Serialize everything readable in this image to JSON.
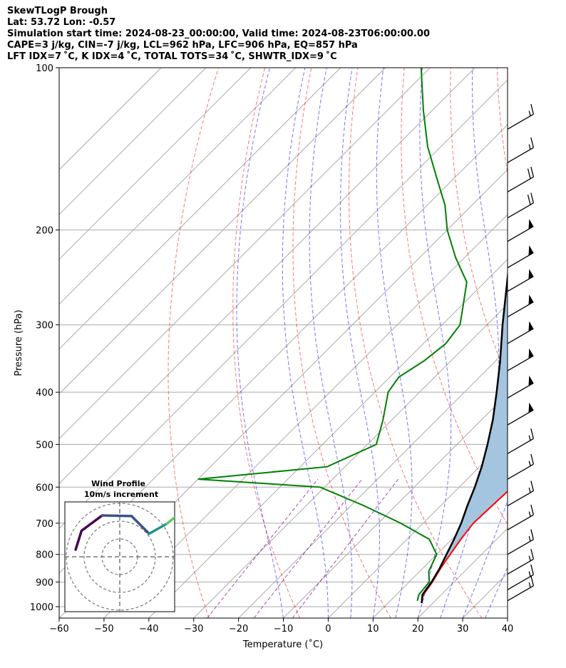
{
  "header": {
    "line1": "SkewTLogP Brough",
    "line2": "Lat: 53.72   Lon: -0.57",
    "line3": "Simulation start time: 2024-08-23_00:00:00, Valid time: 2024-08-23T06:00:00.00",
    "line4": "CAPE=3 j/kg, CIN=-7 j/kg, LCL=962 hPa, LFC=906 hPa, EQ=857 hPa",
    "line5": "LFT IDX=7 ˚C, K IDX=4 ˚C, TOTAL TOTS=34 ˚C, SHWTR_IDX=9 ˚C"
  },
  "chart_data": {
    "type": "line",
    "xlabel": "Temperature (˚C)",
    "ylabel": "Pressure (hPa)",
    "xlim": [
      -60,
      40
    ],
    "ylim": [
      1050,
      100
    ],
    "y_scale": "log",
    "skew": true,
    "x_ticks": [
      "−60",
      "−50",
      "−40",
      "−30",
      "−20",
      "−10",
      "0",
      "10",
      "20",
      "30",
      "40"
    ],
    "y_ticks": [
      "100",
      "200",
      "300",
      "400",
      "500",
      "600",
      "700",
      "800",
      "900",
      "1000"
    ],
    "grid": true,
    "series": [
      {
        "role": "temperature",
        "color": "#ff0000",
        "points": [
          [
            17,
            975
          ],
          [
            16,
            950
          ],
          [
            15.2,
            900
          ],
          [
            14,
            850
          ],
          [
            13,
            800
          ],
          [
            12,
            750
          ],
          [
            11.2,
            700
          ],
          [
            11.5,
            650
          ],
          [
            11.8,
            600
          ],
          [
            11.2,
            550
          ],
          [
            9,
            500
          ],
          [
            5,
            450
          ],
          [
            1,
            400
          ],
          [
            -4,
            350
          ],
          [
            -9,
            300
          ],
          [
            -12,
            270
          ],
          [
            -15,
            250
          ],
          [
            -20,
            225
          ],
          [
            -25,
            200
          ],
          [
            -30,
            180
          ],
          [
            -37,
            160
          ],
          [
            -45,
            140
          ],
          [
            -55,
            120
          ],
          [
            -63,
            100
          ]
        ]
      },
      {
        "role": "dewpoint",
        "color": "#008000",
        "points": [
          [
            16,
            975
          ],
          [
            15,
            950
          ],
          [
            14.5,
            900
          ],
          [
            12,
            860
          ],
          [
            10,
            800
          ],
          [
            5,
            750
          ],
          [
            -5,
            700
          ],
          [
            -17,
            650
          ],
          [
            -31,
            600
          ],
          [
            -60,
            580
          ],
          [
            -34,
            550
          ],
          [
            -28,
            500
          ],
          [
            -32,
            450
          ],
          [
            -37,
            400
          ],
          [
            -38,
            375
          ],
          [
            -36,
            350
          ],
          [
            -35,
            325
          ],
          [
            -36,
            300
          ],
          [
            -39,
            280
          ],
          [
            -44,
            250
          ],
          [
            -52,
            225
          ],
          [
            -60,
            200
          ],
          [
            -66,
            180
          ],
          [
            -74,
            160
          ],
          [
            -83,
            140
          ],
          [
            -92,
            120
          ],
          [
            -102,
            100
          ]
        ]
      },
      {
        "role": "parcel",
        "color": "#000000",
        "points": [
          [
            17.5,
            985
          ],
          [
            15.8,
            950
          ],
          [
            15,
            900
          ],
          [
            13.8,
            850
          ],
          [
            12.2,
            800
          ],
          [
            10.5,
            750
          ],
          [
            8.5,
            700
          ],
          [
            6,
            650
          ],
          [
            3.5,
            600
          ],
          [
            0.5,
            550
          ],
          [
            -3.2,
            500
          ],
          [
            -7.5,
            450
          ],
          [
            -12.8,
            400
          ],
          [
            -19,
            350
          ],
          [
            -26.5,
            300
          ],
          [
            -35,
            250
          ],
          [
            -45.5,
            200
          ],
          [
            -53,
            170
          ],
          [
            -62,
            140
          ],
          [
            -70,
            120
          ],
          [
            -80,
            100
          ]
        ]
      }
    ],
    "cape_shading_color": "#a3c5df",
    "dry_adiabat_color": "#ff0000",
    "moist_adiabat_color": "#0000ff",
    "mixing_ratio_color": "#800080",
    "wind_barbs": [
      {
        "p": 130,
        "dir": 240,
        "speed": 15
      },
      {
        "p": 150,
        "dir": 240,
        "speed": 15
      },
      {
        "p": 170,
        "dir": 240,
        "speed": 20
      },
      {
        "p": 190,
        "dir": 240,
        "speed": 20
      },
      {
        "p": 210,
        "dir": 240,
        "speed": 50
      },
      {
        "p": 235,
        "dir": 240,
        "speed": 50
      },
      {
        "p": 260,
        "dir": 240,
        "speed": 50
      },
      {
        "p": 290,
        "dir": 240,
        "speed": 50
      },
      {
        "p": 325,
        "dir": 240,
        "speed": 50
      },
      {
        "p": 365,
        "dir": 240,
        "speed": 50
      },
      {
        "p": 410,
        "dir": 240,
        "speed": 50
      },
      {
        "p": 460,
        "dir": 240,
        "speed": 50
      },
      {
        "p": 520,
        "dir": 240,
        "speed": 15
      },
      {
        "p": 580,
        "dir": 240,
        "speed": 15
      },
      {
        "p": 650,
        "dir": 240,
        "speed": 15
      },
      {
        "p": 720,
        "dir": 240,
        "speed": 15
      },
      {
        "p": 800,
        "dir": 240,
        "speed": 15
      },
      {
        "p": 870,
        "dir": 240,
        "speed": 15
      },
      {
        "p": 930,
        "dir": 240,
        "speed": 15
      },
      {
        "p": 975,
        "dir": 240,
        "speed": 15
      }
    ],
    "hodograph": {
      "title_line1": "Wind Profile",
      "title_line2": "10m/s increment",
      "rings": 3,
      "trace": [
        [
          -7.5,
          -1.2
        ],
        [
          -6.5,
          2
        ],
        [
          -3,
          4.6
        ],
        [
          2,
          4.5
        ],
        [
          5,
          1.5
        ],
        [
          8,
          3.2
        ],
        [
          10,
          4.8
        ],
        [
          14,
          10
        ],
        [
          18,
          16
        ]
      ],
      "trace_colors": [
        "#440154",
        "#3b528b",
        "#21918c",
        "#5ec962",
        "#fde725"
      ]
    }
  }
}
